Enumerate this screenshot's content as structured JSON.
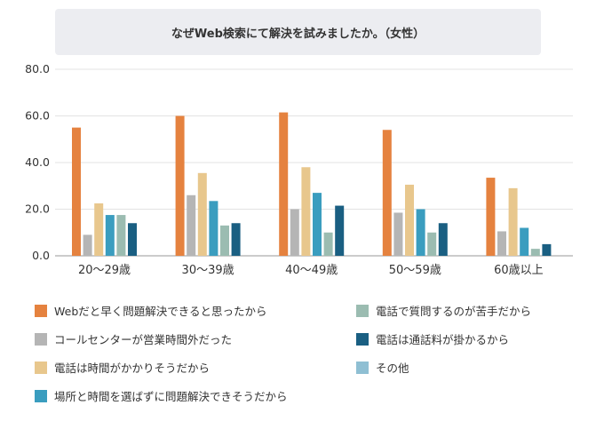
{
  "chart_data": {
    "type": "bar",
    "title": "なぜWeb検索にて解決を試みましたか。（女性）",
    "xlabel": "",
    "ylabel": "",
    "ylim": [
      0,
      80
    ],
    "yticks": [
      "80.0",
      "60.0",
      "40.0",
      "20.0",
      "0.0"
    ],
    "grid": true,
    "legend_position": "bottom",
    "categories": [
      "20～29歳",
      "30～39歳",
      "40～49歳",
      "50～59歳",
      "60歳以上"
    ],
    "series": [
      {
        "name": "Webだと早く問題解決できると思ったから",
        "color": "#e5823f",
        "values": [
          55.0,
          60.0,
          61.5,
          54.0,
          33.5
        ]
      },
      {
        "name": "コールセンターが営業時間外だった",
        "color": "#b5b5b5",
        "values": [
          9.0,
          26.0,
          20.0,
          18.5,
          10.5
        ]
      },
      {
        "name": "電話は時間がかかりそうだから",
        "color": "#e8c78d",
        "values": [
          22.5,
          35.5,
          38.0,
          30.5,
          29.0
        ]
      },
      {
        "name": "場所と時間を選ばずに問題解決できそうだから",
        "color": "#3a9dbf",
        "values": [
          17.5,
          23.5,
          27.0,
          20.0,
          12.0
        ]
      },
      {
        "name": "電話で質問するのが苦手だから",
        "color": "#9bbcb1",
        "values": [
          17.5,
          13.0,
          10.0,
          10.0,
          3.0
        ]
      },
      {
        "name": "電話は通話料が掛かるから",
        "color": "#1a5f82",
        "values": [
          14.0,
          14.0,
          21.5,
          14.0,
          5.0
        ]
      },
      {
        "name": "その他",
        "color": "#8fbfd3",
        "values": [
          0,
          0,
          0,
          0,
          0
        ]
      }
    ]
  }
}
